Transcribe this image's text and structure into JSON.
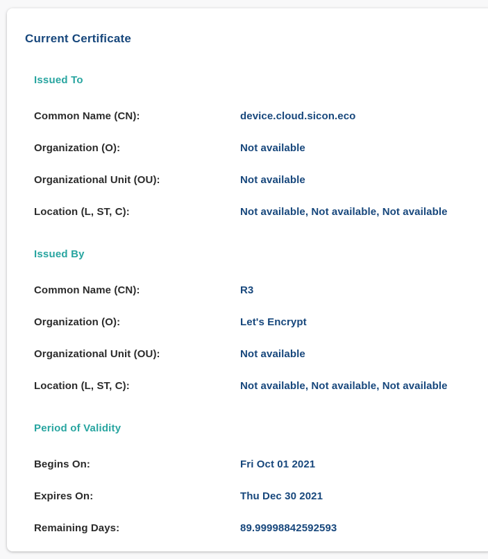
{
  "colors": {
    "page_bg": "#f8f8f9",
    "card_bg": "#ffffff",
    "title_navy": "#17477c",
    "section_teal": "#28a5a0",
    "label_dark": "#2b2b2b",
    "value_navy": "#17477c"
  },
  "card": {
    "title": "Current Certificate",
    "sections": [
      {
        "heading": "Issued To",
        "rows": [
          {
            "label": "Common Name (CN):",
            "value": "device.cloud.sicon.eco"
          },
          {
            "label": "Organization (O):",
            "value": "Not available"
          },
          {
            "label": "Organizational Unit (OU):",
            "value": "Not available"
          },
          {
            "label": "Location (L, ST, C):",
            "value": "Not available, Not available, Not available"
          }
        ]
      },
      {
        "heading": "Issued By",
        "rows": [
          {
            "label": "Common Name (CN):",
            "value": "R3"
          },
          {
            "label": "Organization (O):",
            "value": "Let's Encrypt"
          },
          {
            "label": "Organizational Unit (OU):",
            "value": "Not available"
          },
          {
            "label": "Location (L, ST, C):",
            "value": "Not available, Not available, Not available"
          }
        ]
      },
      {
        "heading": "Period of Validity",
        "rows": [
          {
            "label": "Begins On:",
            "value": "Fri Oct 01 2021"
          },
          {
            "label": "Expires On:",
            "value": "Thu Dec 30 2021"
          },
          {
            "label": "Remaining Days:",
            "value": "89.99998842592593"
          }
        ]
      }
    ]
  }
}
